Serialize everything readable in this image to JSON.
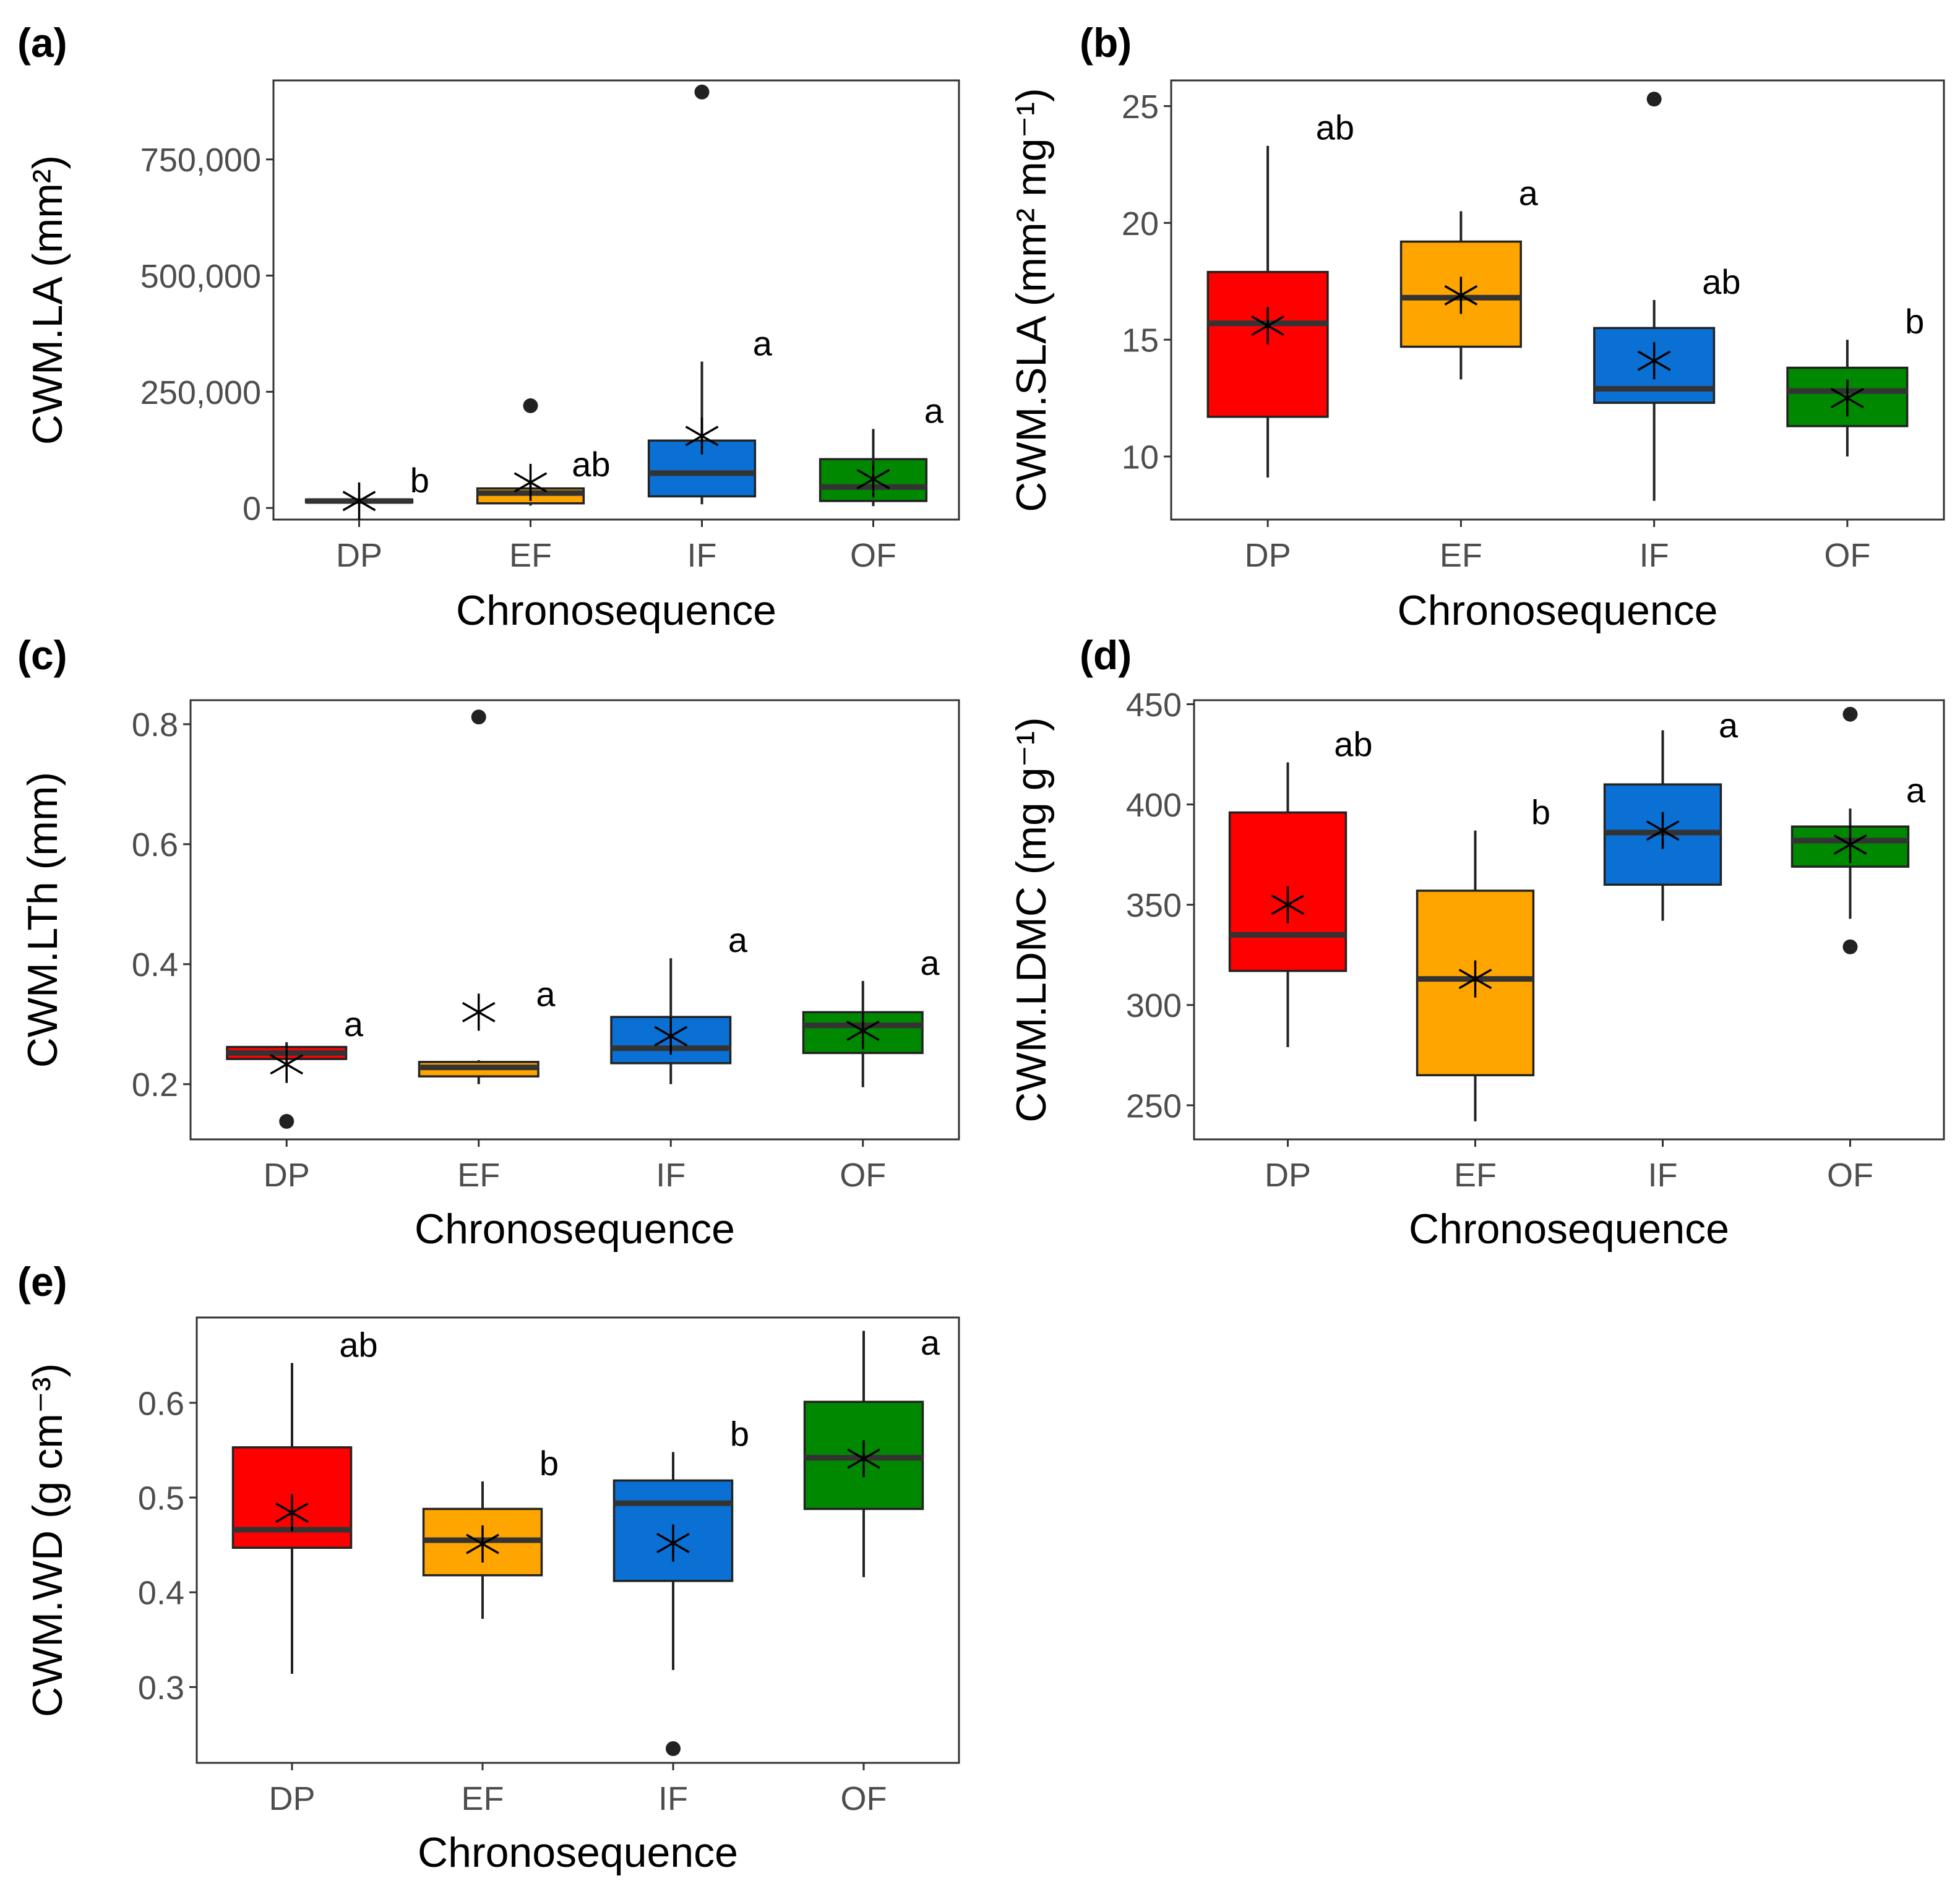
{
  "chart_data": [
    {
      "type": "box",
      "panel_label": "(a)",
      "ylabel": "CWM.LA (mm²)",
      "xlabel": "Chronosequence",
      "categories": [
        "DP",
        "EF",
        "IF",
        "OF"
      ],
      "ylim": [
        -25000,
        920000
      ],
      "yticks": [
        0,
        250000,
        500000,
        750000
      ],
      "ytick_labels": [
        "0",
        "250,000",
        "500,000",
        "750,000"
      ],
      "colors": [
        "#ff0000",
        "#ffa500",
        "#0a70d4",
        "#008800"
      ],
      "boxes": [
        {
          "q1": 12000,
          "median": 15000,
          "q3": 18000,
          "whisker_low": 9000,
          "whisker_high": 20000,
          "mean": 15000,
          "outliers": [],
          "letter": "b"
        },
        {
          "q1": 10000,
          "median": 32000,
          "q3": 42000,
          "whisker_low": 5000,
          "whisker_high": 48000,
          "mean": 55000,
          "outliers": [
            220000
          ],
          "letter": "ab"
        },
        {
          "q1": 25000,
          "median": 75000,
          "q3": 145000,
          "whisker_low": 8000,
          "whisker_high": 315000,
          "mean": 155000,
          "outliers": [
            895000
          ],
          "letter": "a"
        },
        {
          "q1": 15000,
          "median": 45000,
          "q3": 105000,
          "whisker_low": 4000,
          "whisker_high": 170000,
          "mean": 62000,
          "outliers": [],
          "letter": "a"
        }
      ]
    },
    {
      "type": "box",
      "panel_label": "(b)",
      "ylabel": "CWM.SLA (mm² mg⁻¹)",
      "xlabel": "Chronosequence",
      "categories": [
        "DP",
        "EF",
        "IF",
        "OF"
      ],
      "ylim": [
        7.3,
        26.1
      ],
      "yticks": [
        10,
        15,
        20,
        25
      ],
      "ytick_labels": [
        "10",
        "15",
        "20",
        "25"
      ],
      "colors": [
        "#ff0000",
        "#ffa500",
        "#0a70d4",
        "#008800"
      ],
      "boxes": [
        {
          "q1": 11.7,
          "median": 15.7,
          "q3": 17.9,
          "whisker_low": 9.1,
          "whisker_high": 23.3,
          "mean": 15.6,
          "outliers": [],
          "letter": "ab"
        },
        {
          "q1": 14.7,
          "median": 16.8,
          "q3": 19.2,
          "whisker_low": 13.3,
          "whisker_high": 20.5,
          "mean": 16.9,
          "outliers": [],
          "letter": "a"
        },
        {
          "q1": 12.3,
          "median": 12.9,
          "q3": 15.5,
          "whisker_low": 8.1,
          "whisker_high": 16.7,
          "mean": 14.1,
          "outliers": [
            25.3
          ],
          "letter": "ab"
        },
        {
          "q1": 11.3,
          "median": 12.8,
          "q3": 13.8,
          "whisker_low": 10.0,
          "whisker_high": 15.0,
          "mean": 12.5,
          "outliers": [],
          "letter": "b"
        }
      ]
    },
    {
      "type": "box",
      "panel_label": "(c)",
      "ylabel": "CWM.LTh (mm)",
      "xlabel": "Chronosequence",
      "categories": [
        "DP",
        "EF",
        "IF",
        "OF"
      ],
      "ylim": [
        0.108,
        0.84
      ],
      "yticks": [
        0.2,
        0.4,
        0.6,
        0.8
      ],
      "ytick_labels": [
        "0.2",
        "0.4",
        "0.6",
        "0.8"
      ],
      "colors": [
        "#ff0000",
        "#ffa500",
        "#0a70d4",
        "#008800"
      ],
      "boxes": [
        {
          "q1": 0.242,
          "median": 0.252,
          "q3": 0.262,
          "whisker_low": 0.238,
          "whisker_high": 0.27,
          "mean": 0.233,
          "outliers": [
            0.138
          ],
          "letter": "a"
        },
        {
          "q1": 0.213,
          "median": 0.228,
          "q3": 0.237,
          "whisker_low": 0.2,
          "whisker_high": 0.24,
          "mean": 0.32,
          "outliers": [
            0.812
          ],
          "letter": "a"
        },
        {
          "q1": 0.235,
          "median": 0.26,
          "q3": 0.312,
          "whisker_low": 0.2,
          "whisker_high": 0.41,
          "mean": 0.28,
          "outliers": [],
          "letter": "a"
        },
        {
          "q1": 0.252,
          "median": 0.298,
          "q3": 0.32,
          "whisker_low": 0.195,
          "whisker_high": 0.372,
          "mean": 0.289,
          "outliers": [],
          "letter": "a"
        }
      ]
    },
    {
      "type": "box",
      "panel_label": "(d)",
      "ylabel": "CWM.LDMC (mg g⁻¹)",
      "xlabel": "Chronosequence",
      "categories": [
        "DP",
        "EF",
        "IF",
        "OF"
      ],
      "ylim": [
        233,
        452
      ],
      "yticks": [
        250,
        300,
        350,
        400,
        450
      ],
      "ytick_labels": [
        "250",
        "300",
        "350",
        "400",
        "450"
      ],
      "colors": [
        "#ff0000",
        "#ffa500",
        "#0a70d4",
        "#008800"
      ],
      "boxes": [
        {
          "q1": 317,
          "median": 335,
          "q3": 396,
          "whisker_low": 279,
          "whisker_high": 421,
          "mean": 350,
          "outliers": [],
          "letter": "ab"
        },
        {
          "q1": 265,
          "median": 313,
          "q3": 357,
          "whisker_low": 242,
          "whisker_high": 387,
          "mean": 313,
          "outliers": [],
          "letter": "b"
        },
        {
          "q1": 360,
          "median": 386,
          "q3": 410,
          "whisker_low": 342,
          "whisker_high": 437,
          "mean": 387,
          "outliers": [],
          "letter": "a"
        },
        {
          "q1": 369,
          "median": 382,
          "q3": 389,
          "whisker_low": 343,
          "whisker_high": 398,
          "mean": 380,
          "outliers": [
            445,
            329
          ],
          "letter": "a"
        }
      ]
    },
    {
      "type": "box",
      "panel_label": "(e)",
      "ylabel": "CWM.WD (g cm⁻³)",
      "xlabel": "Chronosequence",
      "categories": [
        "DP",
        "EF",
        "IF",
        "OF"
      ],
      "ylim": [
        0.22,
        0.69
      ],
      "yticks": [
        0.3,
        0.4,
        0.5,
        0.6
      ],
      "ytick_labels": [
        "0.3",
        "0.4",
        "0.5",
        "0.6"
      ],
      "colors": [
        "#ff0000",
        "#ffa500",
        "#0a70d4",
        "#008800"
      ],
      "boxes": [
        {
          "q1": 0.447,
          "median": 0.466,
          "q3": 0.553,
          "whisker_low": 0.314,
          "whisker_high": 0.642,
          "mean": 0.484,
          "outliers": [],
          "letter": "ab"
        },
        {
          "q1": 0.418,
          "median": 0.455,
          "q3": 0.488,
          "whisker_low": 0.372,
          "whisker_high": 0.517,
          "mean": 0.451,
          "outliers": [],
          "letter": "b"
        },
        {
          "q1": 0.412,
          "median": 0.494,
          "q3": 0.518,
          "whisker_low": 0.318,
          "whisker_high": 0.548,
          "mean": 0.452,
          "outliers": [
            0.235
          ],
          "letter": "b"
        },
        {
          "q1": 0.488,
          "median": 0.542,
          "q3": 0.601,
          "whisker_low": 0.416,
          "whisker_high": 0.676,
          "mean": 0.541,
          "outliers": [],
          "letter": "a"
        }
      ]
    }
  ]
}
